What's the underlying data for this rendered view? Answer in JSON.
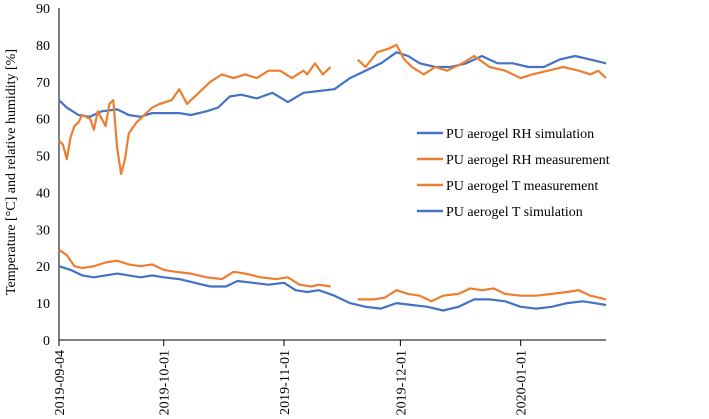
{
  "chart_data": {
    "type": "line",
    "ylabel": "Temperature [°C] and relative humidity [%]",
    "xlabel": "",
    "ylim": [
      0,
      90
    ],
    "yticks": [
      0,
      10,
      20,
      30,
      40,
      50,
      60,
      70,
      80,
      90
    ],
    "x_start": "2019-09-04",
    "x_end": "2020-01-23",
    "xticks": [
      "2019-09-04",
      "2019-10-01",
      "2019-11-01",
      "2019-12-01",
      "2020-01-01"
    ],
    "grid": false,
    "legend_position": "right",
    "series": [
      {
        "name": "PU aerogel RH simulation",
        "color": "#4472c4",
        "points": [
          [
            "2019-09-04",
            65
          ],
          [
            "2019-09-06",
            63
          ],
          [
            "2019-09-09",
            61
          ],
          [
            "2019-09-12",
            60.5
          ],
          [
            "2019-09-15",
            62
          ],
          [
            "2019-09-19",
            62.5
          ],
          [
            "2019-09-22",
            61
          ],
          [
            "2019-09-25",
            60.5
          ],
          [
            "2019-09-28",
            61.5
          ],
          [
            "2019-10-01",
            61.5
          ],
          [
            "2019-10-05",
            61.5
          ],
          [
            "2019-10-08",
            61
          ],
          [
            "2019-10-12",
            62
          ],
          [
            "2019-10-15",
            63
          ],
          [
            "2019-10-18",
            66
          ],
          [
            "2019-10-21",
            66.5
          ],
          [
            "2019-10-25",
            65.5
          ],
          [
            "2019-10-29",
            67
          ],
          [
            "2019-11-02",
            64.5
          ],
          [
            "2019-11-06",
            67
          ],
          [
            "2019-11-10",
            67.5
          ],
          [
            "2019-11-14",
            68
          ],
          [
            "2019-11-18",
            71
          ],
          [
            "2019-11-22",
            73
          ],
          [
            "2019-11-26",
            75
          ],
          [
            "2019-11-30",
            78
          ],
          [
            "2019-12-03",
            77
          ],
          [
            "2019-12-06",
            75
          ],
          [
            "2019-12-10",
            74
          ],
          [
            "2019-12-14",
            74
          ],
          [
            "2019-12-18",
            75
          ],
          [
            "2019-12-22",
            77
          ],
          [
            "2019-12-26",
            75
          ],
          [
            "2019-12-30",
            75
          ],
          [
            "2020-01-03",
            74
          ],
          [
            "2020-01-07",
            74
          ],
          [
            "2020-01-11",
            76
          ],
          [
            "2020-01-15",
            77
          ],
          [
            "2020-01-19",
            76
          ],
          [
            "2020-01-23",
            75
          ]
        ]
      },
      {
        "name": "PU aerogel RH measurement",
        "color": "#ed7d31",
        "segments": [
          [
            [
              "2019-09-04",
              54
            ],
            [
              "2019-09-05",
              53
            ],
            [
              "2019-09-06",
              49
            ],
            [
              "2019-09-07",
              55
            ],
            [
              "2019-09-08",
              58
            ],
            [
              "2019-09-09",
              59
            ],
            [
              "2019-09-10",
              61
            ],
            [
              "2019-09-12",
              60
            ],
            [
              "2019-09-13",
              57
            ],
            [
              "2019-09-14",
              62
            ],
            [
              "2019-09-16",
              58
            ],
            [
              "2019-09-17",
              64
            ],
            [
              "2019-09-18",
              65
            ],
            [
              "2019-09-19",
              52
            ],
            [
              "2019-09-20",
              45
            ],
            [
              "2019-09-21",
              49
            ],
            [
              "2019-09-22",
              56
            ],
            [
              "2019-09-24",
              59
            ],
            [
              "2019-09-26",
              61
            ],
            [
              "2019-09-28",
              63
            ],
            [
              "2019-09-30",
              64
            ],
            [
              "2019-10-03",
              65
            ],
            [
              "2019-10-05",
              68
            ],
            [
              "2019-10-07",
              64
            ],
            [
              "2019-10-10",
              67
            ],
            [
              "2019-10-13",
              70
            ],
            [
              "2019-10-16",
              72
            ],
            [
              "2019-10-19",
              71
            ],
            [
              "2019-10-22",
              72
            ],
            [
              "2019-10-25",
              71
            ],
            [
              "2019-10-28",
              73
            ],
            [
              "2019-10-31",
              73
            ],
            [
              "2019-11-03",
              71
            ],
            [
              "2019-11-06",
              73
            ],
            [
              "2019-11-07",
              72
            ],
            [
              "2019-11-09",
              75
            ],
            [
              "2019-11-11",
              72
            ],
            [
              "2019-11-13",
              74
            ]
          ],
          [
            [
              "2019-11-20",
              76
            ],
            [
              "2019-11-22",
              74
            ],
            [
              "2019-11-25",
              78
            ],
            [
              "2019-11-28",
              79
            ],
            [
              "2019-11-30",
              80
            ],
            [
              "2019-12-02",
              76
            ],
            [
              "2019-12-04",
              74
            ],
            [
              "2019-12-07",
              72
            ],
            [
              "2019-12-10",
              74
            ],
            [
              "2019-12-13",
              73
            ],
            [
              "2019-12-17",
              75
            ],
            [
              "2019-12-20",
              77
            ],
            [
              "2019-12-24",
              74
            ],
            [
              "2019-12-28",
              73
            ],
            [
              "2020-01-01",
              71
            ],
            [
              "2020-01-04",
              72
            ],
            [
              "2020-01-08",
              73
            ],
            [
              "2020-01-12",
              74
            ],
            [
              "2020-01-16",
              73
            ],
            [
              "2020-01-19",
              72
            ],
            [
              "2020-01-21",
              73
            ],
            [
              "2020-01-23",
              71
            ]
          ]
        ]
      },
      {
        "name": "PU aerogel T measurement",
        "color": "#ed7d31",
        "segments": [
          [
            [
              "2019-09-04",
              24.5
            ],
            [
              "2019-09-06",
              23
            ],
            [
              "2019-09-08",
              20
            ],
            [
              "2019-09-10",
              19.5
            ],
            [
              "2019-09-13",
              20
            ],
            [
              "2019-09-16",
              21
            ],
            [
              "2019-09-19",
              21.5
            ],
            [
              "2019-09-22",
              20.5
            ],
            [
              "2019-09-25",
              20
            ],
            [
              "2019-09-28",
              20.5
            ],
            [
              "2019-10-01",
              19
            ],
            [
              "2019-10-04",
              18.5
            ],
            [
              "2019-10-08",
              18
            ],
            [
              "2019-10-12",
              17
            ],
            [
              "2019-10-16",
              16.5
            ],
            [
              "2019-10-19",
              18.5
            ],
            [
              "2019-10-22",
              18
            ],
            [
              "2019-10-26",
              17
            ],
            [
              "2019-10-30",
              16.5
            ],
            [
              "2019-11-02",
              17
            ],
            [
              "2019-11-05",
              15
            ],
            [
              "2019-11-08",
              14.5
            ],
            [
              "2019-11-10",
              15
            ],
            [
              "2019-11-13",
              14.5
            ]
          ],
          [
            [
              "2019-11-20",
              11
            ],
            [
              "2019-11-24",
              11
            ],
            [
              "2019-11-27",
              11.5
            ],
            [
              "2019-11-30",
              13.5
            ],
            [
              "2019-12-03",
              12.5
            ],
            [
              "2019-12-06",
              12
            ],
            [
              "2019-12-09",
              10.5
            ],
            [
              "2019-12-12",
              12
            ],
            [
              "2019-12-16",
              12.5
            ],
            [
              "2019-12-19",
              14
            ],
            [
              "2019-12-22",
              13.5
            ],
            [
              "2019-12-25",
              14
            ],
            [
              "2019-12-28",
              12.5
            ],
            [
              "2020-01-01",
              12
            ],
            [
              "2020-01-05",
              12
            ],
            [
              "2020-01-09",
              12.5
            ],
            [
              "2020-01-13",
              13
            ],
            [
              "2020-01-16",
              13.5
            ],
            [
              "2020-01-19",
              12
            ],
            [
              "2020-01-23",
              11
            ]
          ]
        ]
      },
      {
        "name": "PU aerogel T simulation",
        "color": "#4472c4",
        "points": [
          [
            "2019-09-04",
            20
          ],
          [
            "2019-09-07",
            19
          ],
          [
            "2019-09-10",
            17.5
          ],
          [
            "2019-09-13",
            17
          ],
          [
            "2019-09-16",
            17.5
          ],
          [
            "2019-09-19",
            18
          ],
          [
            "2019-09-22",
            17.5
          ],
          [
            "2019-09-25",
            17
          ],
          [
            "2019-09-28",
            17.5
          ],
          [
            "2019-10-01",
            17
          ],
          [
            "2019-10-05",
            16.5
          ],
          [
            "2019-10-09",
            15.5
          ],
          [
            "2019-10-13",
            14.5
          ],
          [
            "2019-10-17",
            14.5
          ],
          [
            "2019-10-20",
            16
          ],
          [
            "2019-10-24",
            15.5
          ],
          [
            "2019-10-28",
            15
          ],
          [
            "2019-11-01",
            15.5
          ],
          [
            "2019-11-04",
            13.5
          ],
          [
            "2019-11-07",
            13
          ],
          [
            "2019-11-10",
            13.5
          ],
          [
            "2019-11-14",
            12
          ],
          [
            "2019-11-18",
            10
          ],
          [
            "2019-11-22",
            9
          ],
          [
            "2019-11-26",
            8.5
          ],
          [
            "2019-11-30",
            10
          ],
          [
            "2019-12-04",
            9.5
          ],
          [
            "2019-12-08",
            9
          ],
          [
            "2019-12-12",
            8
          ],
          [
            "2019-12-16",
            9
          ],
          [
            "2019-12-20",
            11
          ],
          [
            "2019-12-24",
            11
          ],
          [
            "2019-12-28",
            10.5
          ],
          [
            "2020-01-01",
            9
          ],
          [
            "2020-01-05",
            8.5
          ],
          [
            "2020-01-09",
            9
          ],
          [
            "2020-01-13",
            10
          ],
          [
            "2020-01-17",
            10.5
          ],
          [
            "2020-01-20",
            10
          ],
          [
            "2020-01-23",
            9.5
          ]
        ]
      }
    ]
  }
}
